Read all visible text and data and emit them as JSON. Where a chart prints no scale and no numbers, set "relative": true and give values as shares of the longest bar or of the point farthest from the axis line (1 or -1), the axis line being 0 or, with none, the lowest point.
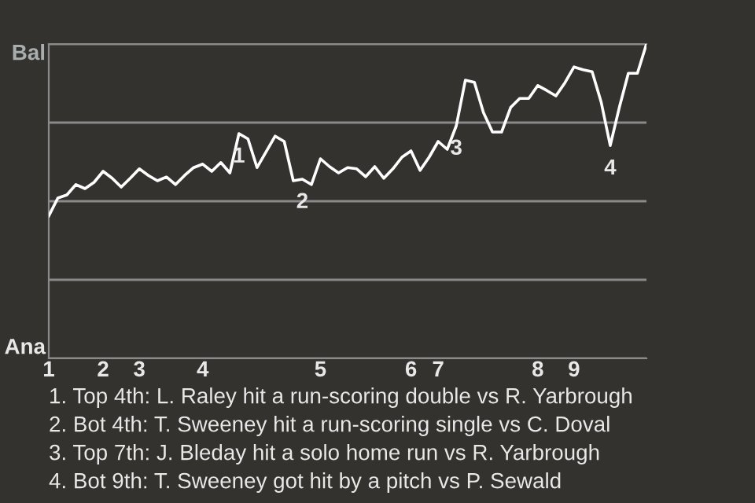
{
  "chart_data": {
    "type": "line",
    "relative": true,
    "categories": [
      "1",
      null,
      null,
      null,
      null,
      null,
      "2",
      null,
      null,
      null,
      "3",
      null,
      null,
      null,
      null,
      null,
      null,
      "4",
      null,
      null,
      null,
      null,
      null,
      null,
      null,
      null,
      null,
      null,
      null,
      null,
      "5",
      null,
      null,
      null,
      null,
      null,
      null,
      null,
      null,
      null,
      "6",
      null,
      null,
      "7",
      null,
      null,
      null,
      null,
      null,
      null,
      null,
      null,
      null,
      null,
      "8",
      null,
      null,
      null,
      "9",
      null,
      null,
      null,
      null,
      null,
      null,
      null,
      null
    ],
    "series": [
      {
        "color": "#ffffff",
        "values": [
          0.453,
          0.51,
          0.52,
          0.553,
          0.54,
          0.56,
          0.595,
          0.573,
          0.545,
          0.573,
          0.603,
          0.582,
          0.565,
          0.577,
          0.553,
          0.582,
          0.607,
          0.618,
          0.595,
          0.623,
          0.59,
          0.715,
          0.698,
          0.607,
          0.657,
          0.707,
          0.69,
          0.565,
          0.57,
          0.553,
          0.635,
          0.61,
          0.59,
          0.607,
          0.603,
          0.578,
          0.61,
          0.573,
          0.603,
          0.64,
          0.66,
          0.598,
          0.64,
          0.69,
          0.665,
          0.74,
          0.885,
          0.878,
          0.782,
          0.72,
          0.72,
          0.798,
          0.827,
          0.827,
          0.868,
          0.852,
          0.835,
          0.877,
          0.927,
          0.918,
          0.912,
          0.815,
          0.677,
          0.798,
          0.907,
          0.907,
          1.0
        ]
      }
    ],
    "grid": "y",
    "annotations": [
      "Bal",
      "Ana",
      {
        "text": "1",
        "y": 0.715
      },
      {
        "text": "2",
        "y": 0.57
      },
      {
        "text": "3",
        "y": 0.74
      },
      {
        "text": "4",
        "y": 0.677
      },
      "1. Top 4th: L. Raley hit a run-scoring double vs R. Yarbrough",
      "2. Bot 4th: T. Sweeney hit a run-scoring single vs C. Doval",
      "3. Top 7th: J. Bleday hit a solo home run vs R. Yarbrough",
      "4. Bot 9th: T. Sweeney got hit by a pitch vs P. Sewald"
    ]
  }
}
